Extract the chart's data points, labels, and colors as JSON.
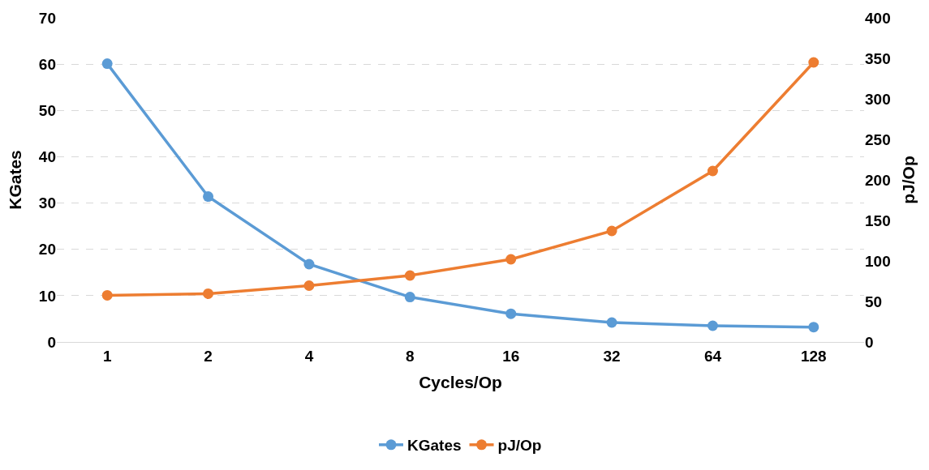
{
  "chart_data": {
    "type": "line",
    "xlabel": "Cycles/Op",
    "ylabel": "KGates",
    "y2label": "pJ/Op",
    "categories": [
      "1",
      "2",
      "4",
      "8",
      "16",
      "32",
      "64",
      "128"
    ],
    "series": [
      {
        "name": "KGates",
        "color": "#5b9bd5",
        "values": [
          60.1,
          31.4,
          16.8,
          9.7,
          6.1,
          4.2,
          3.5,
          3.2
        ]
      },
      {
        "name": "pJ/Op",
        "color": "#ed7d31",
        "axis": "y2",
        "values": [
          57.6,
          59.6,
          69.5,
          82,
          102,
          137,
          211,
          345
        ]
      }
    ],
    "ylim": [
      0,
      70
    ],
    "yticks": [
      0,
      10,
      20,
      30,
      40,
      50,
      60,
      70
    ],
    "y2lim": [
      0,
      400
    ],
    "y2ticks": [
      0,
      50,
      100,
      150,
      200,
      250,
      300,
      350,
      400
    ],
    "grid": "y",
    "legend": "bottom",
    "marker": "circle",
    "line_style": "solid"
  }
}
